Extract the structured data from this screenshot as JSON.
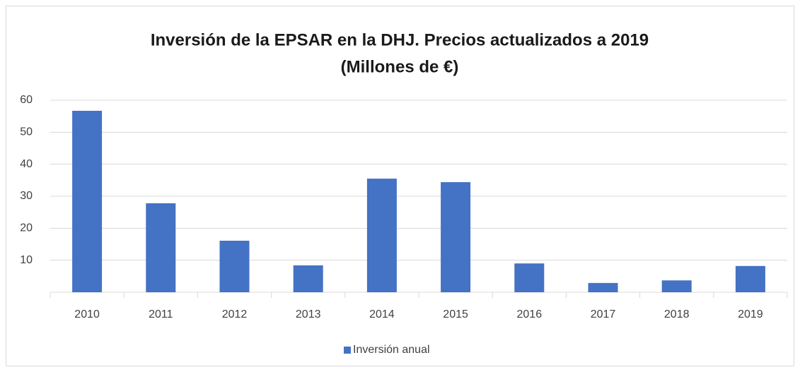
{
  "chart_data": {
    "type": "bar",
    "title": "Inversión de la EPSAR en la DHJ. Precios actualizados a 2019",
    "subtitle": "(Millones de €)",
    "categories": [
      "2010",
      "2011",
      "2012",
      "2013",
      "2014",
      "2015",
      "2016",
      "2017",
      "2018",
      "2019"
    ],
    "series": [
      {
        "name": "Inversión anual",
        "color": "#4472c4",
        "values": [
          56.7,
          27.8,
          16.1,
          8.4,
          35.5,
          34.4,
          9.0,
          2.9,
          3.7,
          8.2
        ]
      }
    ],
    "ylim": [
      0,
      60
    ],
    "yticks": [
      10,
      20,
      30,
      40,
      50,
      60
    ],
    "grid": true,
    "legend": "bottom"
  }
}
